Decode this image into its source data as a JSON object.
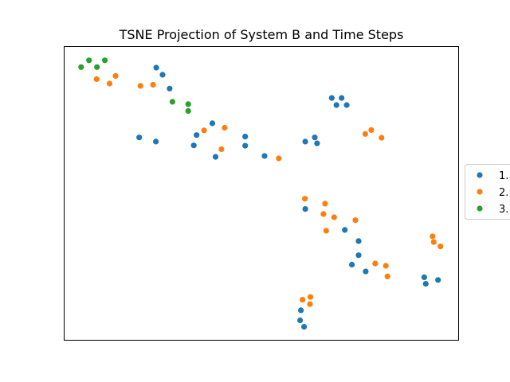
{
  "chart_data": {
    "type": "scatter",
    "title": "TSNE Projection of System B and Time Steps",
    "xlabel": "",
    "ylabel": "",
    "axes_ticks": "hidden",
    "xlim": [
      0,
      100
    ],
    "ylim": [
      0,
      100
    ],
    "grid": false,
    "legend_position": "right",
    "series": [
      {
        "name": "1.",
        "color": "#1f77b4",
        "points": [
          [
            23.4,
            92.7
          ],
          [
            25.0,
            90.3
          ],
          [
            26.8,
            85.6
          ],
          [
            37.6,
            73.8
          ],
          [
            33.6,
            69.8
          ],
          [
            32.9,
            66.3
          ],
          [
            38.4,
            62.4
          ],
          [
            19.1,
            69.0
          ],
          [
            23.3,
            67.6
          ],
          [
            45.9,
            69.3
          ],
          [
            45.9,
            66.2
          ],
          [
            50.8,
            62.7
          ],
          [
            70.3,
            82.4
          ],
          [
            69.0,
            80.0
          ],
          [
            71.6,
            80.0
          ],
          [
            67.8,
            82.4
          ],
          [
            63.5,
            69.0
          ],
          [
            64.1,
            67.0
          ],
          [
            61.1,
            67.6
          ],
          [
            61.1,
            44.7
          ],
          [
            71.1,
            37.6
          ],
          [
            74.6,
            33.8
          ],
          [
            74.6,
            29.0
          ],
          [
            72.9,
            25.8
          ],
          [
            76.4,
            23.5
          ],
          [
            91.2,
            21.5
          ],
          [
            91.6,
            19.3
          ],
          [
            94.7,
            20.6
          ],
          [
            60.0,
            10.3
          ],
          [
            59.8,
            6.9
          ],
          [
            60.8,
            4.7
          ]
        ]
      },
      {
        "name": "2.",
        "color": "#ff7f0e",
        "points": [
          [
            8.3,
            88.8
          ],
          [
            11.6,
            87.3
          ],
          [
            13.1,
            89.9
          ],
          [
            19.4,
            86.5
          ],
          [
            22.6,
            86.9
          ],
          [
            35.5,
            71.4
          ],
          [
            40.7,
            72.3
          ],
          [
            39.9,
            65.0
          ],
          [
            54.4,
            61.9
          ],
          [
            76.3,
            70.2
          ],
          [
            77.8,
            71.5
          ],
          [
            80.4,
            68.9
          ],
          [
            61.0,
            48.2
          ],
          [
            66.1,
            46.5
          ],
          [
            65.7,
            43.0
          ],
          [
            68.4,
            41.9
          ],
          [
            73.8,
            40.9
          ],
          [
            66.4,
            37.3
          ],
          [
            78.8,
            26.2
          ],
          [
            81.5,
            25.4
          ],
          [
            81.9,
            21.8
          ],
          [
            93.3,
            35.4
          ],
          [
            93.6,
            33.5
          ],
          [
            95.3,
            32.0
          ],
          [
            60.4,
            13.9
          ],
          [
            62.3,
            12.4
          ],
          [
            62.4,
            14.8
          ]
        ]
      },
      {
        "name": "3.",
        "color": "#2ca02c",
        "points": [
          [
            4.4,
            92.9
          ],
          [
            6.4,
            95.2
          ],
          [
            8.4,
            92.9
          ],
          [
            10.4,
            95.2
          ],
          [
            27.5,
            81.1
          ],
          [
            31.5,
            80.3
          ],
          [
            31.5,
            78.0
          ]
        ]
      }
    ]
  }
}
